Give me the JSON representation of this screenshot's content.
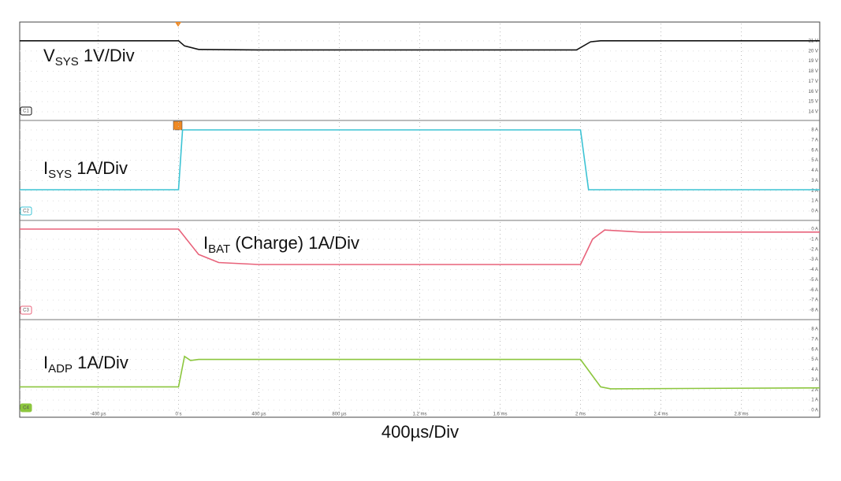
{
  "chart_data": [
    {
      "type": "line",
      "label": {
        "main": "V",
        "sub": "SYS",
        "rest": " 1V/Div"
      },
      "channel": "C1",
      "series": [
        {
          "name": "VSYS",
          "color": "#111111",
          "x": [
            -0.79,
            0,
            0.03,
            0.1,
            0.4,
            1.98,
            2.05,
            2.1,
            3.19
          ],
          "values": [
            21,
            21,
            20.5,
            20.15,
            20.1,
            20.1,
            20.9,
            21,
            21
          ]
        }
      ],
      "xlim": [
        -0.79,
        3.19
      ],
      "ylim": [
        13.15,
        22.85
      ],
      "yticks": [
        {
          "value": 14,
          "label": "14 V"
        },
        {
          "value": 15,
          "label": "15 V"
        },
        {
          "value": 16,
          "label": "16 V"
        },
        {
          "value": 17,
          "label": "17 V"
        },
        {
          "value": 18,
          "label": "18 V"
        },
        {
          "value": 19,
          "label": "19 V"
        },
        {
          "value": 20,
          "label": "20 V"
        },
        {
          "value": 21,
          "label": "21 V"
        }
      ]
    },
    {
      "type": "line",
      "label": {
        "main": "I",
        "sub": "SYS",
        "rest": " 1A/Div"
      },
      "channel": "C2",
      "series": [
        {
          "name": "ISYS",
          "color": "#3cc3d4",
          "x": [
            -0.79,
            0,
            0.02,
            2.0,
            2.04,
            3.19
          ],
          "values": [
            2.1,
            2.1,
            8,
            8,
            2.1,
            2.1
          ]
        }
      ],
      "xlim": [
        -0.79,
        3.19
      ],
      "ylim": [
        -0.93,
        8.93
      ],
      "yticks": [
        {
          "value": 0,
          "label": "0 A"
        },
        {
          "value": 1,
          "label": "1 A"
        },
        {
          "value": 2,
          "label": "2 A"
        },
        {
          "value": 3,
          "label": "3 A"
        },
        {
          "value": 4,
          "label": "4 A"
        },
        {
          "value": 5,
          "label": "5 A"
        },
        {
          "value": 6,
          "label": "6 A"
        },
        {
          "value": 7,
          "label": "7 A"
        },
        {
          "value": 8,
          "label": "8 A"
        }
      ]
    },
    {
      "type": "line",
      "label": {
        "main": "I",
        "sub": "BAT",
        "rest": " (Charge) 1A/Div"
      },
      "channel": "C3",
      "series": [
        {
          "name": "IBAT",
          "color": "#e8627a",
          "x": [
            -0.79,
            0,
            0.1,
            0.2,
            0.4,
            2.0,
            2.06,
            2.12,
            2.3,
            3.19
          ],
          "values": [
            0,
            0,
            -2.5,
            -3.3,
            -3.5,
            -3.5,
            -1,
            -0.1,
            -0.3,
            -0.3
          ]
        }
      ],
      "xlim": [
        -0.79,
        3.19
      ],
      "ylim": [
        -8.93,
        0.85
      ],
      "yticks": [
        {
          "value": 0,
          "label": "0 A"
        },
        {
          "value": -1,
          "label": "-1 A"
        },
        {
          "value": -2,
          "label": "-2 A"
        },
        {
          "value": -3,
          "label": "-3 A"
        },
        {
          "value": -4,
          "label": "-4 A"
        },
        {
          "value": -5,
          "label": "-5 A"
        },
        {
          "value": -6,
          "label": "-6 A"
        },
        {
          "value": -7,
          "label": "-7 A"
        },
        {
          "value": -8,
          "label": "-8 A"
        }
      ]
    },
    {
      "type": "line",
      "label": {
        "main": "I",
        "sub": "ADP",
        "rest": " 1A/Div"
      },
      "channel": "C4",
      "series": [
        {
          "name": "IADP",
          "color": "#8cc63e",
          "x": [
            -0.79,
            0,
            0.03,
            0.06,
            0.1,
            2.0,
            2.1,
            2.15,
            3.19
          ],
          "values": [
            2.3,
            2.3,
            5.3,
            4.9,
            5.0,
            5.0,
            2.3,
            2.1,
            2.2
          ]
        }
      ],
      "xlim": [
        -0.79,
        3.19
      ],
      "ylim": [
        -0.7,
        8.93
      ],
      "yticks": [
        {
          "value": 0,
          "label": "0 A"
        },
        {
          "value": 1,
          "label": "1 A"
        },
        {
          "value": 2,
          "label": "2 A"
        },
        {
          "value": 3,
          "label": "3 A"
        },
        {
          "value": 4,
          "label": "4 A"
        },
        {
          "value": 5,
          "label": "5 A"
        },
        {
          "value": 6,
          "label": "6 A"
        },
        {
          "value": 7,
          "label": "7 A"
        },
        {
          "value": 8,
          "label": "8 A"
        }
      ],
      "xticks": [
        {
          "value": -0.4,
          "label": "-400 µs"
        },
        {
          "value": 0,
          "label": "0 s"
        },
        {
          "value": 0.4,
          "label": "400 µs"
        },
        {
          "value": 0.8,
          "label": "800 µs"
        },
        {
          "value": 1.2,
          "label": "1.2 ms"
        },
        {
          "value": 1.6,
          "label": "1.6 ms"
        },
        {
          "value": 2,
          "label": "2 ms"
        },
        {
          "value": 2.4,
          "label": "2.4 ms"
        },
        {
          "value": 2.8,
          "label": "2.8 ms"
        }
      ],
      "xlabel": "400µs/Div"
    }
  ]
}
